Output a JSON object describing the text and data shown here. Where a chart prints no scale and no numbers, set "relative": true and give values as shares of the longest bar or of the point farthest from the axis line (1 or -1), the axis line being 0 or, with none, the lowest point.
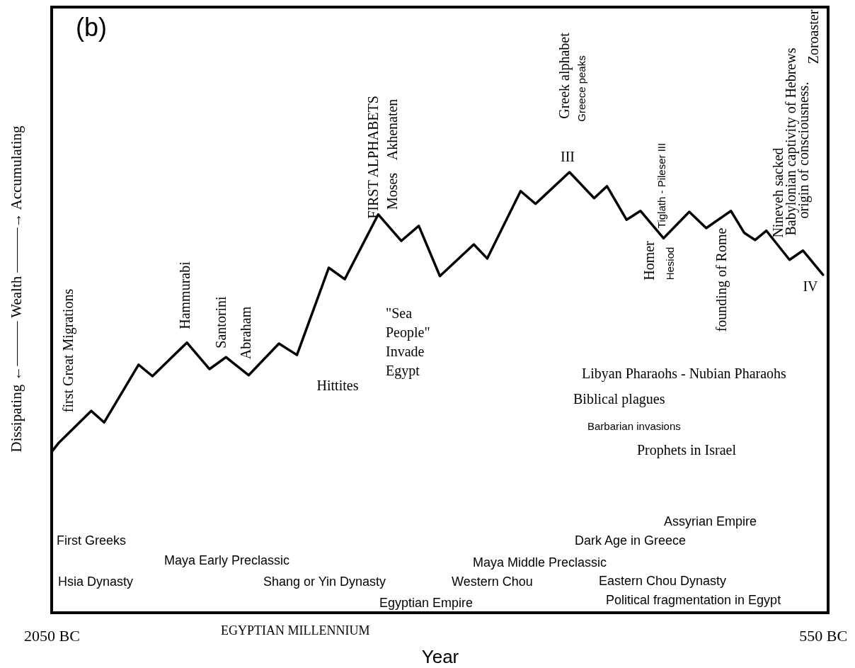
{
  "chart_data": {
    "type": "line",
    "xlabel": "Year",
    "ylabel": "Dissipating ←——— Wealth ———→ Accumulating",
    "relative": true,
    "x": [
      -2050,
      -2036,
      -1973,
      -1948,
      -1881,
      -1854,
      -1787,
      -1743,
      -1711,
      -1667,
      -1608,
      -1573,
      -1511,
      -1480,
      -1415,
      -1370,
      -1336,
      -1295,
      -1229,
      -1203,
      -1138,
      -1109,
      -1043,
      -995,
      -970,
      -932,
      -905,
      -860,
      -810,
      -777,
      -729,
      -703,
      -682,
      -660,
      -615,
      -589,
      -550
    ],
    "series": [
      {
        "color": "#000000",
        "values": [
          0.365,
          0.386,
          0.458,
          0.432,
          0.563,
          0.537,
          0.613,
          0.553,
          0.58,
          0.539,
          0.611,
          0.585,
          0.783,
          0.757,
          0.904,
          0.844,
          0.878,
          0.764,
          0.836,
          0.804,
          0.957,
          0.928,
          1,
          0.941,
          0.968,
          0.892,
          0.912,
          0.85,
          0.91,
          0.873,
          0.912,
          0.862,
          0.846,
          0.867,
          0.801,
          0.822,
          0.767
        ]
      }
    ],
    "xlim": [
      -2050,
      -540
    ],
    "xticks": [
      {
        "value": -2050,
        "label": "2050 BC"
      },
      {
        "value": -550,
        "label": "550 BC"
      }
    ],
    "line_style": "solid",
    "annotations": [
      "(b)",
      "first Great Migrations",
      "Hammurabi",
      "Santorini",
      "Abraham",
      "FIRST ALPHABETS",
      "Moses",
      "Akhenaten",
      "Hittites",
      "\"Sea People\" Invade Egypt",
      "Greek alphabet",
      "Greece peaks",
      "III",
      "Tiglath - Pileser III",
      "Homer",
      "Hesiod",
      "founding of Rome",
      "Nineveh sacked",
      "Babylonian captivity of Hebrews",
      "origin of consciousness.",
      "Zoroaster",
      "IV",
      "Libyan Pharaohs - Nubian Pharaohs",
      "Biblical plagues",
      "Barbarian invasions",
      "Prophets in Israel",
      "Assyrian Empire",
      "Dark Age in Greece",
      "First Greeks",
      "Maya Early Preclassic",
      "Maya Middle Preclassic",
      "Hsia Dynasty",
      "Shang or Yin Dynasty",
      "Western Chou",
      "Eastern Chou Dynasty",
      "Egyptian Empire",
      "Political fragmentation in Egypt",
      "EGYPTIAN MILLENNIUM"
    ]
  }
}
